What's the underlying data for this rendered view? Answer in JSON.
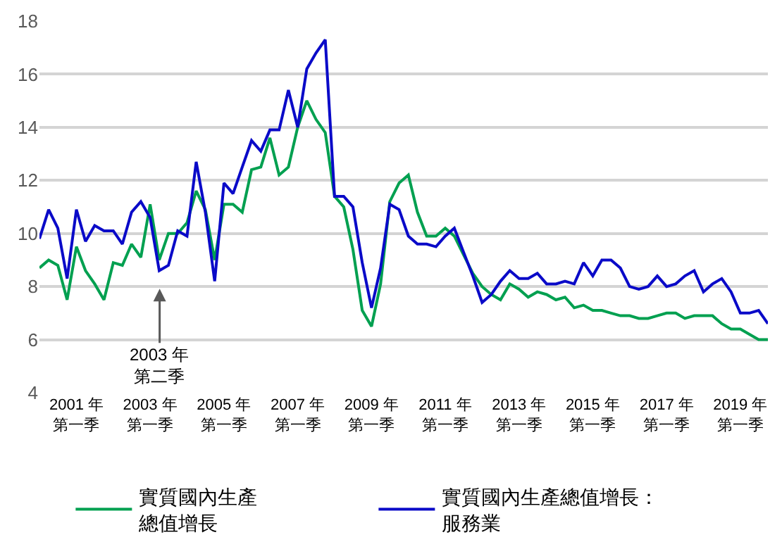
{
  "chart_data": {
    "type": "line",
    "x": [
      "2000-01",
      "2000-04",
      "2000-07",
      "2000-10",
      "2001-01",
      "2001-04",
      "2001-07",
      "2001-10",
      "2002-01",
      "2002-04",
      "2002-07",
      "2002-10",
      "2003-01",
      "2003-04",
      "2003-07",
      "2003-10",
      "2004-01",
      "2004-04",
      "2004-07",
      "2004-10",
      "2005-01",
      "2005-04",
      "2005-07",
      "2005-10",
      "2006-01",
      "2006-04",
      "2006-07",
      "2006-10",
      "2007-01",
      "2007-04",
      "2007-07",
      "2007-10",
      "2008-01",
      "2008-04",
      "2008-07",
      "2008-10",
      "2009-01",
      "2009-04",
      "2009-07",
      "2009-10",
      "2010-01",
      "2010-04",
      "2010-07",
      "2010-10",
      "2011-01",
      "2011-04",
      "2011-07",
      "2011-10",
      "2012-01",
      "2012-04",
      "2012-07",
      "2012-10",
      "2013-01",
      "2013-04",
      "2013-07",
      "2013-10",
      "2014-01",
      "2014-04",
      "2014-07",
      "2014-10",
      "2015-01",
      "2015-04",
      "2015-07",
      "2015-10",
      "2016-01",
      "2016-04",
      "2016-07",
      "2016-10",
      "2017-01",
      "2017-04",
      "2017-07",
      "2017-10",
      "2018-01",
      "2018-04",
      "2018-07",
      "2018-10",
      "2019-01",
      "2019-04",
      "2019-07",
      "2019-10"
    ],
    "series": [
      {
        "name": "實質國內生產總值增長",
        "color": "#00a050",
        "values": [
          8.7,
          9.0,
          8.8,
          7.5,
          9.5,
          8.6,
          8.1,
          7.5,
          8.9,
          8.8,
          9.6,
          9.1,
          11.1,
          9.0,
          10.0,
          10.0,
          10.4,
          11.6,
          10.9,
          9.0,
          11.1,
          11.1,
          10.8,
          12.4,
          12.5,
          13.6,
          12.2,
          12.5,
          14.0,
          15.0,
          14.3,
          13.8,
          11.4,
          11.0,
          9.4,
          7.1,
          6.5,
          8.1,
          11.2,
          11.9,
          12.2,
          10.8,
          9.9,
          9.9,
          10.2,
          9.9,
          9.2,
          8.5,
          8.0,
          7.7,
          7.5,
          8.1,
          7.9,
          7.6,
          7.8,
          7.7,
          7.5,
          7.6,
          7.2,
          7.3,
          7.1,
          7.1,
          7.0,
          6.9,
          6.9,
          6.8,
          6.8,
          6.9,
          7.0,
          7.0,
          6.8,
          6.9,
          6.9,
          6.9,
          6.6,
          6.4,
          6.4,
          6.2,
          6.0,
          6.0
        ]
      },
      {
        "name": "實質國內生產總值增長：服務業",
        "color": "#0a0ac8",
        "values": [
          9.8,
          10.9,
          10.2,
          8.3,
          10.9,
          9.7,
          10.3,
          10.1,
          10.1,
          9.6,
          10.8,
          11.2,
          10.6,
          8.6,
          8.8,
          10.1,
          9.9,
          12.7,
          10.8,
          8.2,
          11.9,
          11.5,
          12.5,
          13.5,
          13.1,
          13.9,
          13.9,
          15.4,
          14.0,
          16.2,
          16.8,
          17.3,
          11.4,
          11.4,
          11.0,
          8.9,
          7.2,
          8.7,
          11.1,
          10.9,
          9.9,
          9.6,
          9.6,
          9.5,
          9.9,
          10.2,
          9.3,
          8.4,
          7.4,
          7.7,
          8.2,
          8.6,
          8.3,
          8.3,
          8.5,
          8.1,
          8.1,
          8.2,
          8.1,
          8.9,
          8.4,
          9.0,
          9.0,
          8.7,
          8.0,
          7.9,
          8.0,
          8.4,
          8.0,
          8.1,
          8.4,
          8.6,
          7.8,
          8.1,
          8.3,
          7.8,
          7.0,
          7.0,
          7.1,
          6.6
        ]
      }
    ],
    "xlim": [
      "2000-01",
      "2019-10"
    ],
    "xticks": [
      {
        "value": "2001-01",
        "label": "2001 年第一季"
      },
      {
        "value": "2003-01",
        "label": "2003 年第一季"
      },
      {
        "value": "2005-01",
        "label": "2005 年第一季"
      },
      {
        "value": "2007-01",
        "label": "2007 年第一季"
      },
      {
        "value": "2009-01",
        "label": "2009 年第一季"
      },
      {
        "value": "2011-01",
        "label": "2011 年第一季"
      },
      {
        "value": "2013-01",
        "label": "2013 年第一季"
      },
      {
        "value": "2015-01",
        "label": "2015 年第一季"
      },
      {
        "value": "2017-01",
        "label": "2017 年第一季"
      },
      {
        "value": "2019-01",
        "label": "2019 年第一季"
      }
    ],
    "ylim": [
      4,
      18
    ],
    "yticks": [
      4,
      6,
      8,
      10,
      12,
      14,
      16,
      18
    ],
    "grid": "y",
    "legend": "bottom",
    "annotations": [
      "2003 年第二季"
    ]
  }
}
